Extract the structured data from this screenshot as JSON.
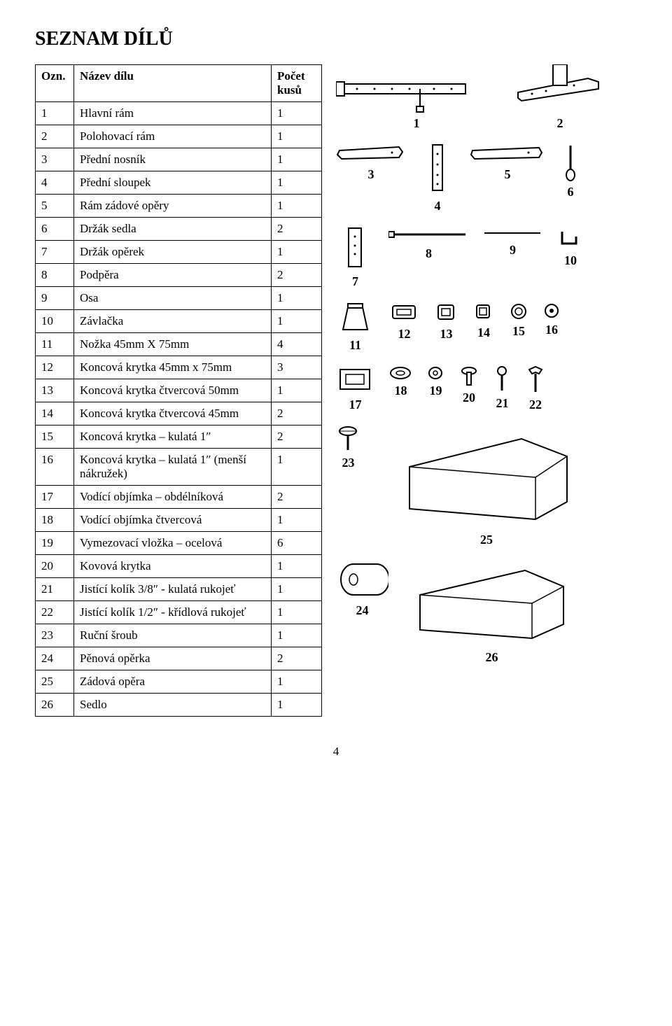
{
  "title": "SEZNAM DÍLŮ",
  "headers": {
    "ozn": "Ozn.",
    "nazev": "Název dílu",
    "pocet": "Počet kusů"
  },
  "rows": [
    {
      "n": "1",
      "name": "Hlavní rám",
      "q": "1"
    },
    {
      "n": "2",
      "name": "Polohovací rám",
      "q": "1"
    },
    {
      "n": "3",
      "name": "Přední nosník",
      "q": "1"
    },
    {
      "n": "4",
      "name": "Přední sloupek",
      "q": "1"
    },
    {
      "n": "5",
      "name": "Rám zádové opěry",
      "q": "1"
    },
    {
      "n": "6",
      "name": "Držák sedla",
      "q": "2"
    },
    {
      "n": "7",
      "name": "Držák opěrek",
      "q": "1"
    },
    {
      "n": "8",
      "name": "Podpěra",
      "q": "2"
    },
    {
      "n": "9",
      "name": "Osa",
      "q": "1"
    },
    {
      "n": "10",
      "name": "Závlačka",
      "q": "1"
    },
    {
      "n": "11",
      "name": "Nožka 45mm X 75mm",
      "q": "4"
    },
    {
      "n": "12",
      "name": "Koncová krytka 45mm x 75mm",
      "q": "3"
    },
    {
      "n": "13",
      "name": "Koncová krytka čtvercová 50mm",
      "q": "1"
    },
    {
      "n": "14",
      "name": "Koncová krytka čtvercová 45mm",
      "q": "2"
    },
    {
      "n": "15",
      "name": "Koncová krytka – kulatá 1″",
      "q": "2"
    },
    {
      "n": "16",
      "name": "Koncová krytka – kulatá 1″ (menší nákružek)",
      "q": "1"
    },
    {
      "n": "17",
      "name": "Vodící objímka – obdélníková",
      "q": "2"
    },
    {
      "n": "18",
      "name": "Vodící objímka čtvercová",
      "q": "1"
    },
    {
      "n": "19",
      "name": "Vymezovací vložka – ocelová",
      "q": "6"
    },
    {
      "n": "20",
      "name": "Kovová krytka",
      "q": "1"
    },
    {
      "n": "21",
      "name": "Jistící kolík 3/8″ - kulatá rukojeť",
      "q": "1"
    },
    {
      "n": "22",
      "name": "Jistící kolík 1/2″ - křídlová rukojeť",
      "q": "1"
    },
    {
      "n": "23",
      "name": "Ruční šroub",
      "q": "1"
    },
    {
      "n": "24",
      "name": "Pěnová opěrka",
      "q": "2"
    },
    {
      "n": "25",
      "name": "Zádová opěra",
      "q": "1"
    },
    {
      "n": "26",
      "name": "Sedlo",
      "q": "1"
    }
  ],
  "pagefoot": "4",
  "diagram_labels": {
    "l1": "1",
    "l2": "2",
    "l3": "3",
    "l4": "4",
    "l5": "5",
    "l6": "6",
    "l7": "7",
    "l8": "8",
    "l9": "9",
    "l10": "10",
    "l11": "11",
    "l12": "12",
    "l13": "13",
    "l14": "14",
    "l15": "15",
    "l16": "16",
    "l17": "17",
    "l18": "18",
    "l19": "19",
    "l20": "20",
    "l21": "21",
    "l22": "22",
    "l23": "23",
    "l24": "24",
    "l25": "25",
    "l26": "26"
  },
  "colors": {
    "stroke": "#000000",
    "fill": "#ffffff"
  }
}
